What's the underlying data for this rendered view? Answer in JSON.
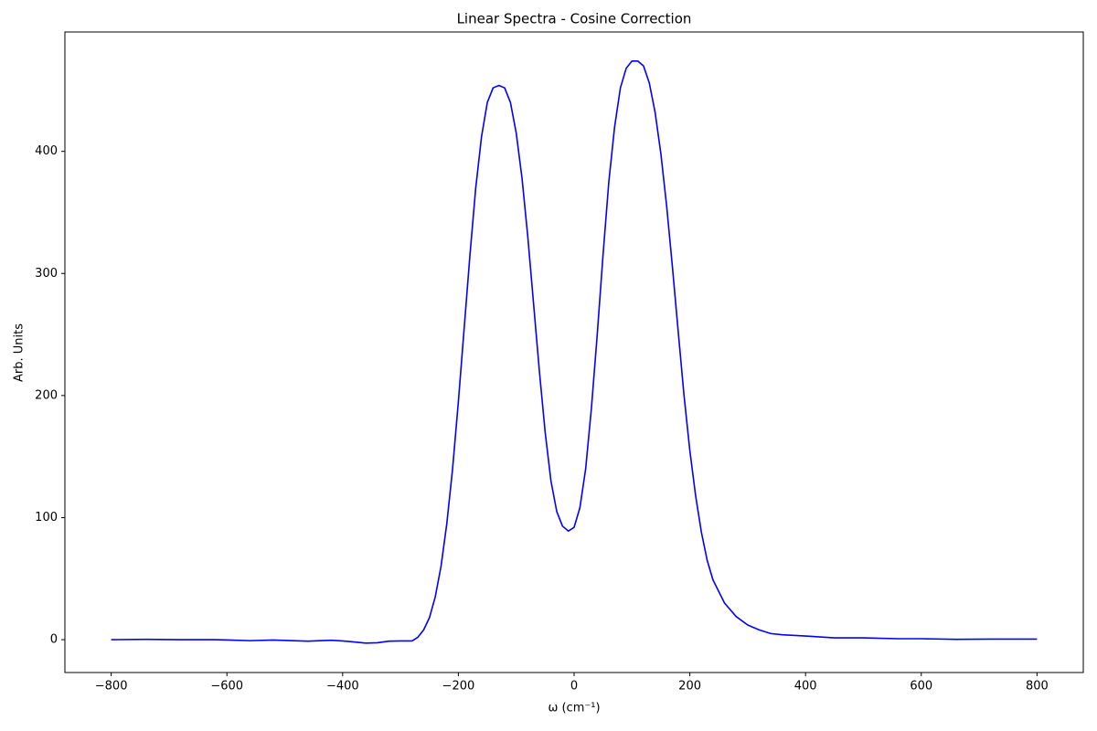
{
  "chart_data": {
    "type": "line",
    "title": "Linear Spectra - Cosine Correction",
    "xlabel": "ω (cm⁻¹)",
    "ylabel": "Arb. Units",
    "color": "#0000ff",
    "grid": false,
    "x": [
      -800,
      -740,
      -680,
      -620,
      -560,
      -520,
      -460,
      -420,
      -400,
      -360,
      -340,
      -320,
      -300,
      -280,
      -270,
      -260,
      -250,
      -240,
      -230,
      -220,
      -210,
      -200,
      -190,
      -180,
      -170,
      -160,
      -150,
      -140,
      -130,
      -120,
      -110,
      -100,
      -90,
      -80,
      -70,
      -60,
      -50,
      -40,
      -30,
      -20,
      -10,
      0,
      10,
      20,
      30,
      40,
      50,
      60,
      70,
      80,
      90,
      100,
      110,
      120,
      130,
      140,
      150,
      160,
      170,
      180,
      190,
      200,
      210,
      220,
      230,
      240,
      260,
      280,
      300,
      320,
      340,
      360,
      400,
      450,
      500,
      560,
      600,
      660,
      720,
      800
    ],
    "values": [
      0,
      0.3,
      0,
      0,
      -0.8,
      -0.3,
      -1.2,
      -0.5,
      -1,
      -2.8,
      -2.5,
      -1.2,
      -1,
      -1,
      2,
      8,
      18,
      35,
      60,
      95,
      140,
      195,
      255,
      315,
      370,
      412,
      440,
      452,
      454,
      452,
      440,
      415,
      378,
      330,
      275,
      220,
      170,
      130,
      105,
      93,
      89,
      92,
      108,
      140,
      190,
      250,
      315,
      375,
      420,
      452,
      468,
      474,
      474,
      470,
      456,
      432,
      398,
      355,
      305,
      252,
      200,
      155,
      118,
      88,
      65,
      49,
      30,
      19,
      12,
      8,
      5,
      4,
      3,
      1.5,
      1.5,
      0.8,
      0.8,
      0.3,
      0.5,
      0.5
    ],
    "xlim": [
      -880,
      880
    ],
    "ylim": [
      -26.9,
      497.8
    ],
    "xticks": [
      {
        "value": -800,
        "label": "−800"
      },
      {
        "value": -600,
        "label": "−600"
      },
      {
        "value": -400,
        "label": "−400"
      },
      {
        "value": -200,
        "label": "−200"
      },
      0,
      200,
      400,
      600,
      800
    ],
    "yticks": [
      0,
      100,
      200,
      300,
      400
    ]
  }
}
